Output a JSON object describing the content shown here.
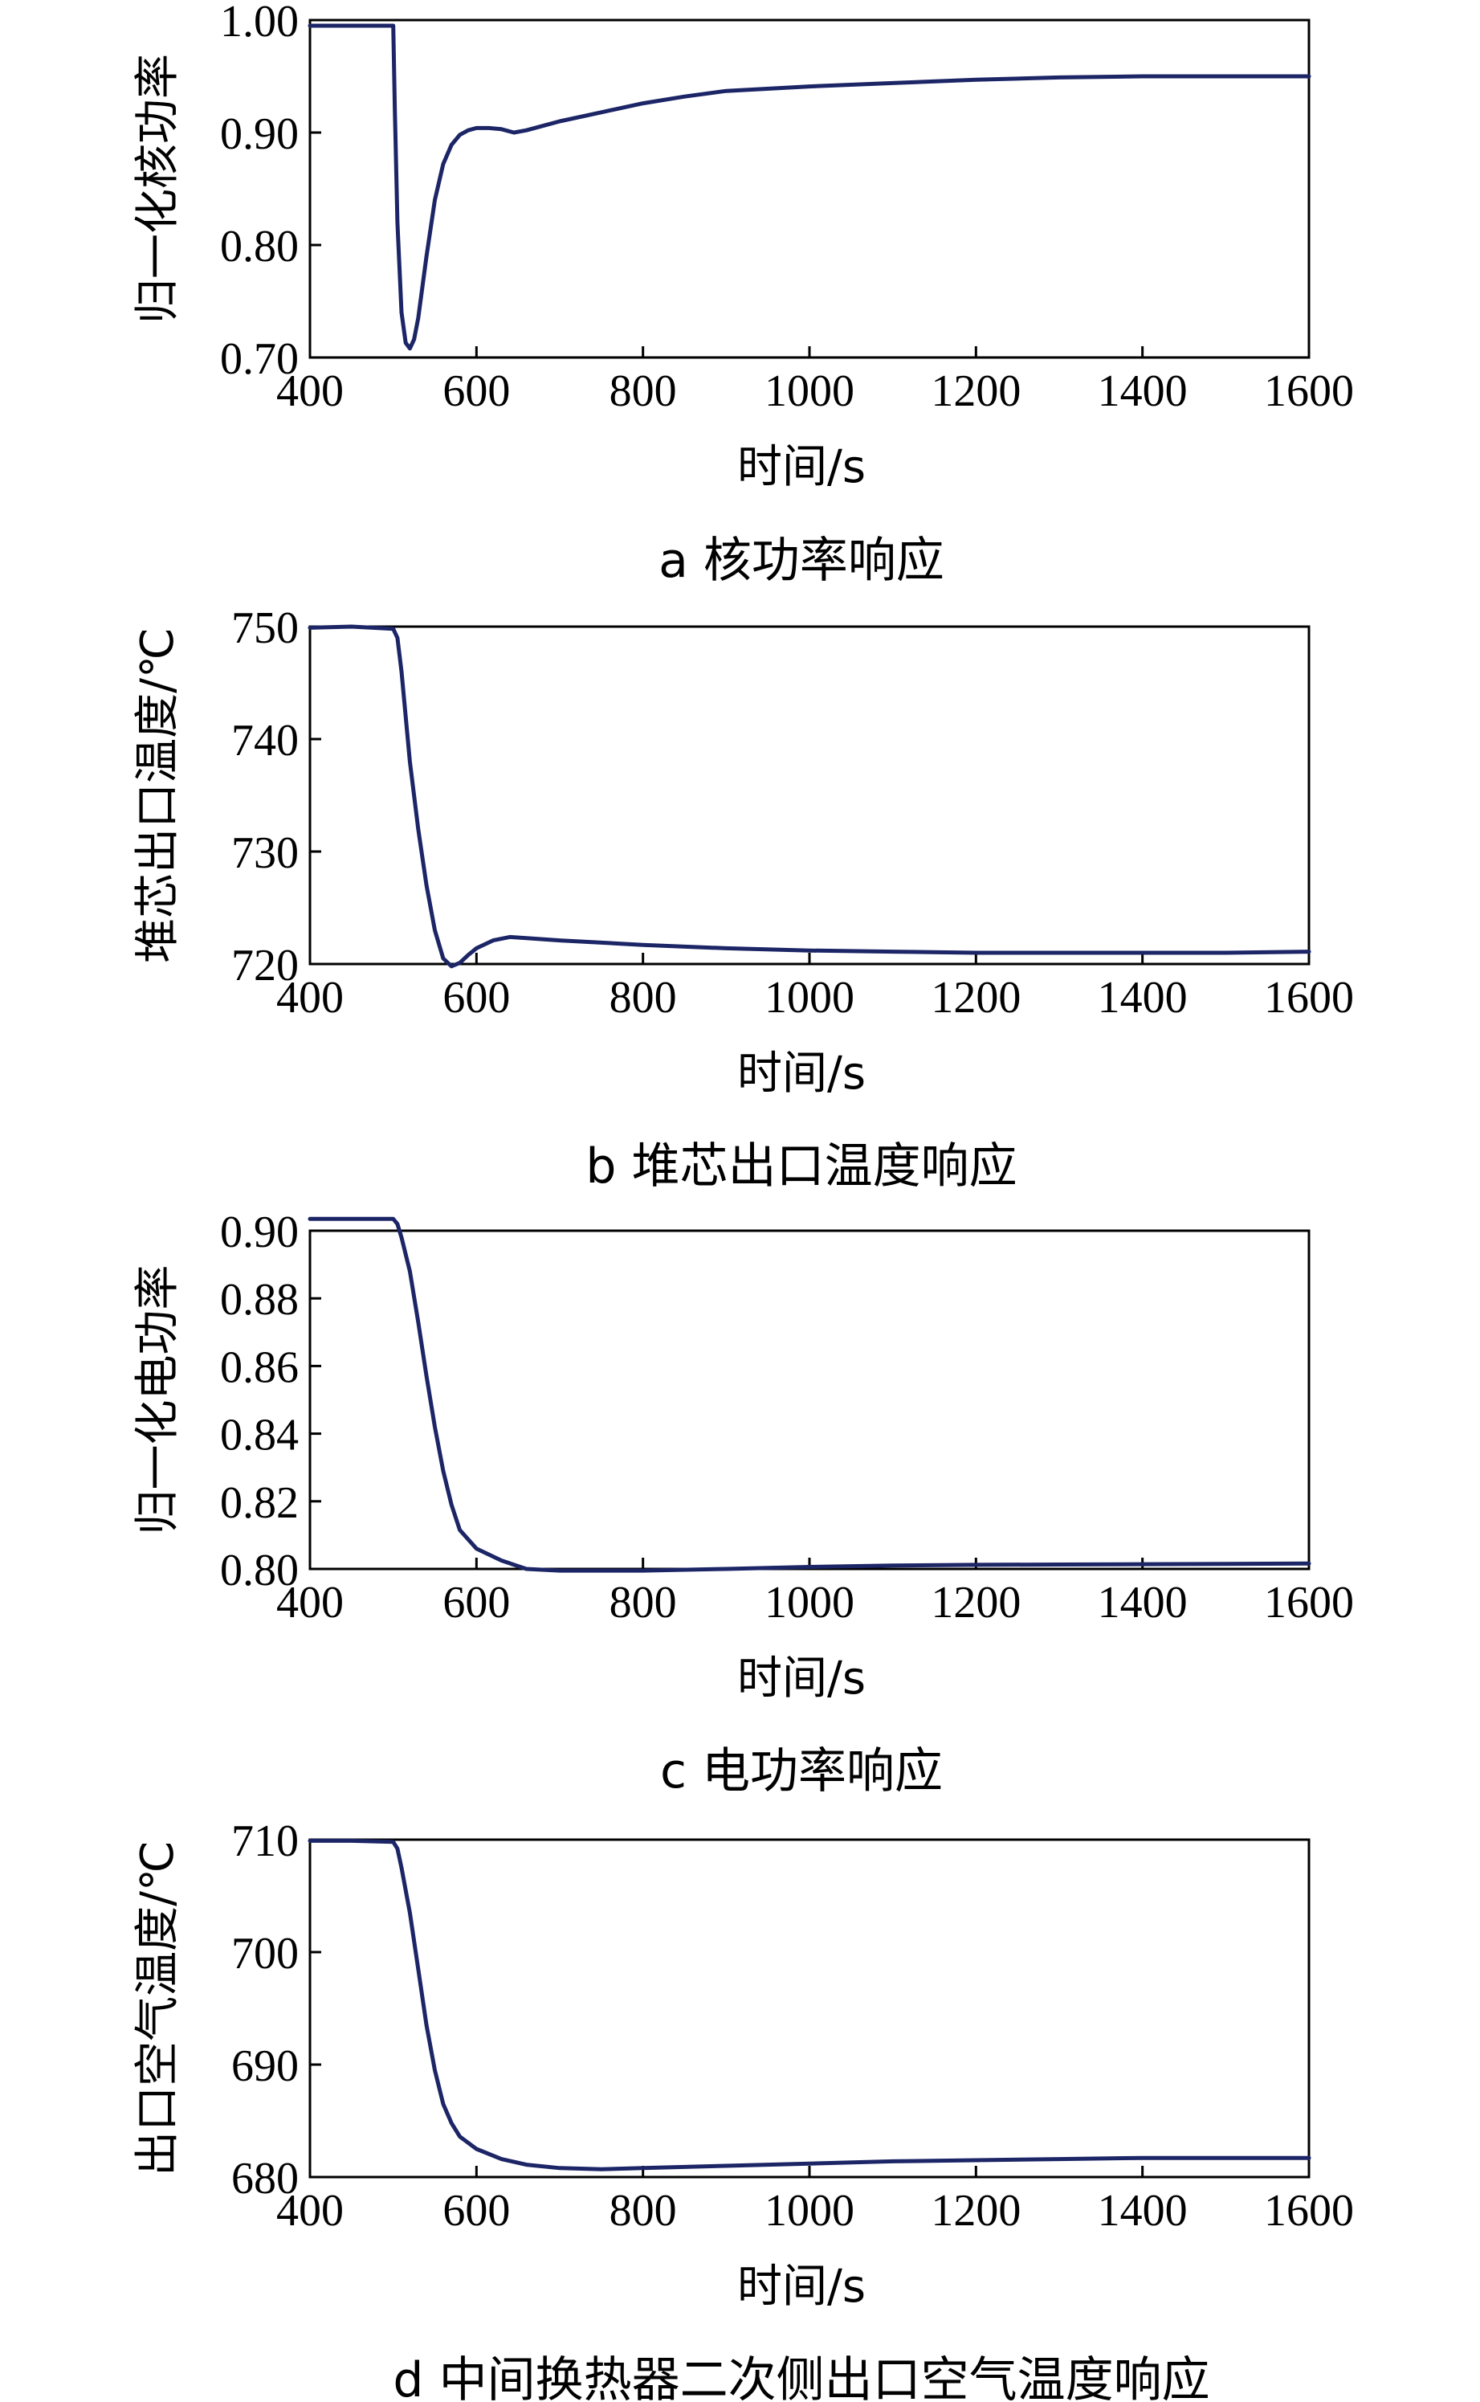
{
  "chart_data": [
    {
      "type": "line",
      "caption": "a  核功率响应",
      "xlabel": "时间/s",
      "ylabel": "归一化核功率",
      "xlim": [
        400,
        1600
      ],
      "ylim": [
        0.7,
        1.0
      ],
      "xticks": [
        "400",
        "600",
        "800",
        "1000",
        "1200",
        "1400",
        "1600"
      ],
      "yticks": [
        "0.70",
        "0.80",
        "0.90",
        "1.00"
      ],
      "grid": false,
      "series": [
        {
          "x": [
            400,
            500,
            502,
            505,
            510,
            515,
            520,
            525,
            530,
            540,
            550,
            560,
            570,
            580,
            590,
            600,
            615,
            630,
            645,
            660,
            680,
            700,
            750,
            800,
            850,
            900,
            1000,
            1100,
            1200,
            1300,
            1400,
            1500,
            1600
          ],
          "y": [
            0.995,
            0.995,
            0.92,
            0.82,
            0.74,
            0.713,
            0.708,
            0.716,
            0.735,
            0.79,
            0.84,
            0.872,
            0.889,
            0.898,
            0.902,
            0.904,
            0.904,
            0.903,
            0.9,
            0.902,
            0.906,
            0.91,
            0.918,
            0.926,
            0.932,
            0.937,
            0.941,
            0.944,
            0.947,
            0.949,
            0.95,
            0.95,
            0.95
          ]
        }
      ]
    },
    {
      "type": "line",
      "caption": "b  堆芯出口温度响应",
      "xlabel": "时间/s",
      "ylabel": "堆芯出口温度/℃",
      "xlim": [
        400,
        1600
      ],
      "ylim": [
        720,
        750
      ],
      "xticks": [
        "400",
        "600",
        "800",
        "1000",
        "1200",
        "1400",
        "1600"
      ],
      "yticks": [
        "720",
        "730",
        "740",
        "750"
      ],
      "grid": false,
      "series": [
        {
          "x": [
            400,
            450,
            500,
            505,
            510,
            515,
            520,
            530,
            540,
            550,
            560,
            570,
            580,
            590,
            600,
            620,
            640,
            660,
            700,
            800,
            900,
            1000,
            1100,
            1200,
            1300,
            1400,
            1500,
            1600
          ],
          "y": [
            749.9,
            750.0,
            749.8,
            749.0,
            746.0,
            742.0,
            738.0,
            732.0,
            727.0,
            723.0,
            720.5,
            719.8,
            720.1,
            720.8,
            721.4,
            722.1,
            722.4,
            722.3,
            722.1,
            721.7,
            721.4,
            721.2,
            721.1,
            721.0,
            721.0,
            721.0,
            721.0,
            721.1
          ]
        }
      ]
    },
    {
      "type": "line",
      "caption": "c  电功率响应",
      "xlabel": "时间/s",
      "ylabel": "归一化电功率",
      "xlim": [
        400,
        1600
      ],
      "ylim": [
        0.8,
        0.9
      ],
      "xticks": [
        "400",
        "600",
        "800",
        "1000",
        "1200",
        "1400",
        "1600"
      ],
      "yticks": [
        "0.80",
        "0.82",
        "0.84",
        "0.86",
        "0.88",
        "0.90"
      ],
      "grid": false,
      "series": [
        {
          "x": [
            400,
            450,
            500,
            505,
            510,
            520,
            530,
            540,
            550,
            560,
            570,
            580,
            600,
            630,
            660,
            700,
            750,
            800,
            900,
            1000,
            1100,
            1200,
            1300,
            1400,
            1500,
            1600
          ],
          "y": [
            0.9035,
            0.9035,
            0.9035,
            0.902,
            0.898,
            0.888,
            0.873,
            0.857,
            0.842,
            0.829,
            0.819,
            0.8115,
            0.806,
            0.8025,
            0.8,
            0.7995,
            0.7995,
            0.7995,
            0.8,
            0.8006,
            0.801,
            0.8012,
            0.8013,
            0.8014,
            0.8015,
            0.8016
          ]
        }
      ]
    },
    {
      "type": "line",
      "caption": "d  中间换热器二次侧出口空气温度响应",
      "xlabel": "时间/s",
      "ylabel": "出口空气温度/℃",
      "xlim": [
        400,
        1600
      ],
      "ylim": [
        680,
        710
      ],
      "xticks": [
        "400",
        "600",
        "800",
        "1000",
        "1200",
        "1400",
        "1600"
      ],
      "yticks": [
        "680",
        "690",
        "700",
        "710"
      ],
      "grid": false,
      "series": [
        {
          "x": [
            400,
            450,
            500,
            505,
            510,
            520,
            530,
            540,
            550,
            560,
            570,
            580,
            600,
            630,
            660,
            700,
            750,
            800,
            900,
            1000,
            1100,
            1200,
            1300,
            1400,
            1500,
            1600
          ],
          "y": [
            709.9,
            709.9,
            709.8,
            709.2,
            707.5,
            703.5,
            698.5,
            693.5,
            689.5,
            686.5,
            684.8,
            683.6,
            682.5,
            681.6,
            681.1,
            680.8,
            680.7,
            680.8,
            681.0,
            681.2,
            681.4,
            681.5,
            681.6,
            681.7,
            681.7,
            681.7
          ]
        }
      ]
    }
  ]
}
